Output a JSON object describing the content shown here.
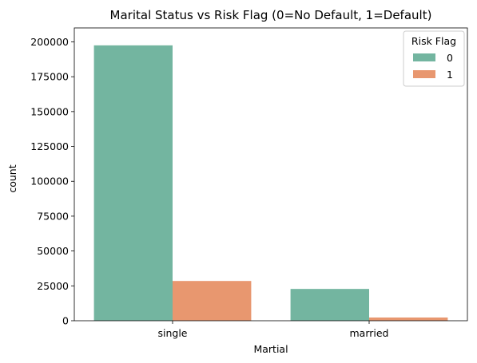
{
  "chart_data": {
    "type": "bar",
    "title": "Marital Status vs Risk Flag (0=No Default, 1=Default)",
    "xlabel": "Martial",
    "ylabel": "count",
    "categories": [
      "single",
      "married"
    ],
    "series": [
      {
        "name": "0",
        "color": "#73b5a0",
        "values": [
          197500,
          22800
        ]
      },
      {
        "name": "1",
        "color": "#e8976f",
        "values": [
          28500,
          2300
        ]
      }
    ],
    "ylim": [
      0,
      210000
    ],
    "yticks": [
      0,
      25000,
      50000,
      75000,
      100000,
      125000,
      150000,
      175000,
      200000
    ],
    "grid": false,
    "legend": {
      "title": "Risk Flag",
      "position": "top-right"
    }
  }
}
